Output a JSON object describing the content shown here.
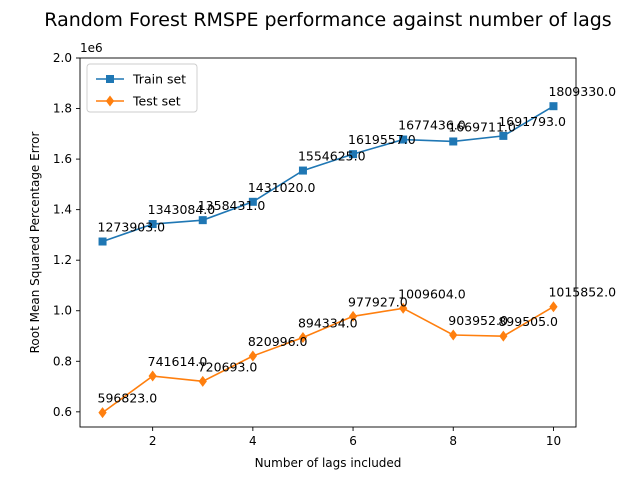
{
  "chart_data": {
    "type": "line",
    "title": "Random Forest RMSPE performance against number of lags",
    "xlabel": "Number of lags included",
    "ylabel": "Root Mean Squared Percentage Error",
    "y_scale_note": "1e6",
    "x": [
      1,
      2,
      3,
      4,
      5,
      6,
      7,
      8,
      9,
      10
    ],
    "xlim": [
      0.55,
      10.45
    ],
    "ylim": [
      0.54,
      2.0
    ],
    "x_ticks": [
      2,
      4,
      6,
      8,
      10
    ],
    "y_ticks": [
      0.6,
      0.8,
      1.0,
      1.2,
      1.4,
      1.6,
      1.8,
      2.0
    ],
    "y_tick_labels": [
      "0.6",
      "0.8",
      "1.0",
      "1.2",
      "1.4",
      "1.6",
      "1.8",
      "2.0"
    ],
    "grid": false,
    "legend_position": "top-left",
    "series": [
      {
        "name": "Train set",
        "color": "#1f77b4",
        "marker": "square",
        "values": [
          1273903.0,
          1343084.0,
          1358431.0,
          1431020.0,
          1554625.0,
          1619557.0,
          1677436.0,
          1669711.0,
          1691793.0,
          1809330.0
        ],
        "labels": [
          "1273903.0",
          "1343084.0",
          "1358431.0",
          "1431020.0",
          "1554625.0",
          "1619557.0",
          "1677436.0",
          "1669711.0",
          "1691793.0",
          "1809330.0"
        ]
      },
      {
        "name": "Test set",
        "color": "#ff7f0e",
        "marker": "diamond",
        "values": [
          596823.0,
          741614.0,
          720693.0,
          820996.0,
          894334.0,
          977927.0,
          1009604.0,
          903952.0,
          899505.0,
          1015852.0
        ],
        "labels": [
          "596823.0",
          "741614.0",
          "720693.0",
          "820996.0",
          "894334.0",
          "977927.0",
          "1009604.0",
          "903952.0",
          "899505.0",
          "1015852.0"
        ]
      }
    ]
  }
}
